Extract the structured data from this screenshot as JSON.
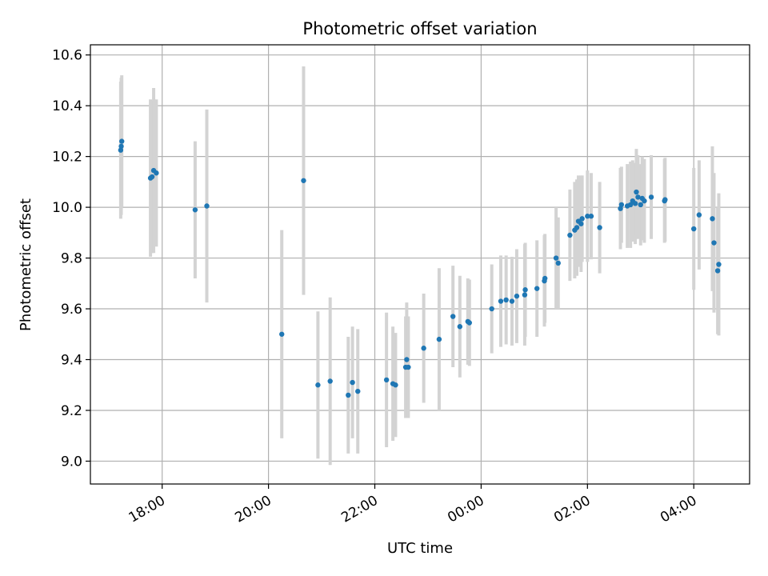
{
  "chart_data": {
    "type": "scatter",
    "title": "Photometric offset variation",
    "xlabel": "UTC time",
    "ylabel": "Photometric offset",
    "grid": true,
    "legend": "none",
    "colors": {
      "point": "#1f77b4",
      "errorbar": "#d3d3d3",
      "grid": "#b0b0b0",
      "axis": "#000000"
    },
    "xlim_hours": [
      16.65,
      29.05
    ],
    "ylim": [
      8.91,
      10.64
    ],
    "x_ticks": [
      {
        "value": 18,
        "label": "18:00"
      },
      {
        "value": 20,
        "label": "20:00"
      },
      {
        "value": 22,
        "label": "22:00"
      },
      {
        "value": 24,
        "label": "00:00"
      },
      {
        "value": 26,
        "label": "02:00"
      },
      {
        "value": 28,
        "label": "04:00"
      }
    ],
    "y_ticks": [
      {
        "value": 9.0,
        "label": "9.0"
      },
      {
        "value": 9.2,
        "label": "9.2"
      },
      {
        "value": 9.4,
        "label": "9.4"
      },
      {
        "value": 9.6,
        "label": "9.6"
      },
      {
        "value": 9.8,
        "label": "9.8"
      },
      {
        "value": 10.0,
        "label": "10.0"
      },
      {
        "value": 10.2,
        "label": "10.2"
      },
      {
        "value": 10.4,
        "label": "10.4"
      },
      {
        "value": 10.6,
        "label": "10.6"
      }
    ],
    "series": [
      {
        "name": "offset",
        "columns": [
          "utc_hours",
          "offset",
          "error"
        ],
        "points": [
          [
            17.22,
            10.225,
            0.27
          ],
          [
            17.23,
            10.24,
            0.27
          ],
          [
            17.24,
            10.26,
            0.26
          ],
          [
            17.78,
            10.115,
            0.31
          ],
          [
            17.81,
            10.12,
            0.3
          ],
          [
            17.84,
            10.145,
            0.325
          ],
          [
            17.89,
            10.135,
            0.29
          ],
          [
            18.62,
            9.99,
            0.27
          ],
          [
            18.84,
            10.005,
            0.38
          ],
          [
            20.25,
            9.5,
            0.41
          ],
          [
            20.66,
            10.105,
            0.45
          ],
          [
            20.93,
            9.3,
            0.29
          ],
          [
            21.16,
            9.315,
            0.33
          ],
          [
            21.5,
            9.26,
            0.23
          ],
          [
            21.58,
            9.31,
            0.22
          ],
          [
            21.68,
            9.275,
            0.245
          ],
          [
            22.22,
            9.32,
            0.265
          ],
          [
            22.34,
            9.305,
            0.225
          ],
          [
            22.39,
            9.3,
            0.205
          ],
          [
            22.58,
            9.37,
            0.2
          ],
          [
            22.6,
            9.4,
            0.225
          ],
          [
            22.63,
            9.37,
            0.2
          ],
          [
            22.92,
            9.445,
            0.215
          ],
          [
            23.21,
            9.48,
            0.28
          ],
          [
            23.47,
            9.57,
            0.2
          ],
          [
            23.6,
            9.53,
            0.2
          ],
          [
            23.75,
            9.55,
            0.17
          ],
          [
            23.78,
            9.545,
            0.17
          ],
          [
            24.2,
            9.6,
            0.175
          ],
          [
            24.37,
            9.63,
            0.18
          ],
          [
            24.47,
            9.635,
            0.175
          ],
          [
            24.58,
            9.63,
            0.175
          ],
          [
            24.67,
            9.65,
            0.185
          ],
          [
            24.82,
            9.655,
            0.2
          ],
          [
            24.83,
            9.675,
            0.185
          ],
          [
            25.05,
            9.68,
            0.19
          ],
          [
            25.19,
            9.71,
            0.18
          ],
          [
            25.2,
            9.72,
            0.175
          ],
          [
            25.41,
            9.8,
            0.2
          ],
          [
            25.45,
            9.78,
            0.18
          ],
          [
            25.67,
            9.89,
            0.18
          ],
          [
            25.76,
            9.91,
            0.19
          ],
          [
            25.8,
            9.92,
            0.19
          ],
          [
            25.83,
            9.945,
            0.18
          ],
          [
            25.88,
            9.935,
            0.19
          ],
          [
            25.9,
            9.955,
            0.17
          ],
          [
            26.0,
            9.965,
            0.18
          ],
          [
            26.07,
            9.965,
            0.17
          ],
          [
            26.23,
            9.92,
            0.18
          ],
          [
            26.62,
            9.995,
            0.16
          ],
          [
            26.64,
            10.01,
            0.15
          ],
          [
            26.75,
            10.005,
            0.165
          ],
          [
            26.81,
            10.01,
            0.17
          ],
          [
            26.85,
            10.025,
            0.16
          ],
          [
            26.9,
            10.015,
            0.16
          ],
          [
            26.92,
            10.06,
            0.17
          ],
          [
            26.95,
            10.04,
            0.165
          ],
          [
            27.0,
            10.01,
            0.16
          ],
          [
            27.03,
            10.035,
            0.165
          ],
          [
            27.07,
            10.025,
            0.165
          ],
          [
            27.2,
            10.04,
            0.165
          ],
          [
            27.45,
            10.025,
            0.165
          ],
          [
            27.46,
            10.03,
            0.165
          ],
          [
            28.0,
            9.915,
            0.24
          ],
          [
            28.1,
            9.97,
            0.215
          ],
          [
            28.35,
            9.955,
            0.285
          ],
          [
            28.38,
            9.86,
            0.275
          ],
          [
            28.45,
            9.75,
            0.25
          ],
          [
            28.47,
            9.775,
            0.28
          ]
        ]
      }
    ]
  }
}
